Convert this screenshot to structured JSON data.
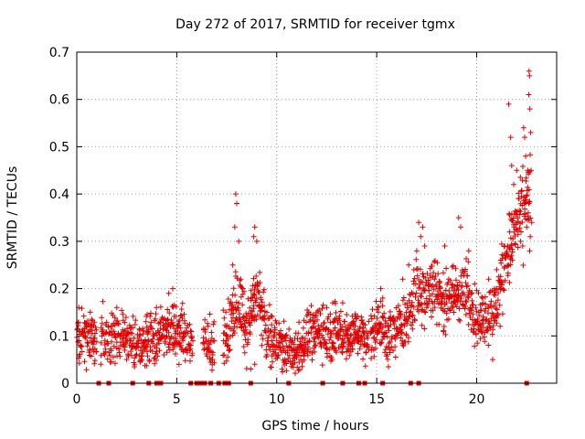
{
  "chart_data": {
    "type": "scatter",
    "title": "Day 272 of 2017, SRMTID for receiver tgmx",
    "xlabel": "GPS time / hours",
    "ylabel": "SRMTID / TECUs",
    "xlim": [
      0,
      24
    ],
    "ylim": [
      0,
      0.7
    ],
    "xticks": [
      0,
      5,
      10,
      15,
      20
    ],
    "xtick_labels": [
      "0",
      "5",
      "10",
      "15",
      "20"
    ],
    "yticks": [
      0,
      0.1,
      0.2,
      0.3,
      0.4,
      0.5,
      0.6,
      0.7
    ],
    "ytick_labels": [
      "0",
      "0.1",
      "0.2",
      "0.3",
      "0.4",
      "0.5",
      "0.6",
      "0.7"
    ],
    "grid": true,
    "marker": "+",
    "color": "#e00000",
    "trend": [
      [
        0.0,
        0.1
      ],
      [
        0.5,
        0.1
      ],
      [
        1.0,
        0.095
      ],
      [
        1.5,
        0.1
      ],
      [
        2.0,
        0.1
      ],
      [
        2.5,
        0.095
      ],
      [
        3.0,
        0.085
      ],
      [
        3.5,
        0.1
      ],
      [
        4.0,
        0.09
      ],
      [
        4.5,
        0.12
      ],
      [
        5.0,
        0.11
      ],
      [
        5.5,
        0.1
      ],
      [
        6.0,
        0.08
      ],
      [
        6.5,
        0.075
      ],
      [
        7.0,
        0.08
      ],
      [
        7.5,
        0.1
      ],
      [
        8.0,
        0.18
      ],
      [
        8.5,
        0.11
      ],
      [
        9.0,
        0.2
      ],
      [
        9.5,
        0.1
      ],
      [
        10.0,
        0.09
      ],
      [
        10.5,
        0.07
      ],
      [
        11.0,
        0.065
      ],
      [
        11.5,
        0.1
      ],
      [
        12.0,
        0.11
      ],
      [
        12.5,
        0.1
      ],
      [
        13.0,
        0.11
      ],
      [
        13.5,
        0.1
      ],
      [
        14.0,
        0.11
      ],
      [
        14.5,
        0.09
      ],
      [
        15.0,
        0.13
      ],
      [
        15.5,
        0.1
      ],
      [
        16.0,
        0.11
      ],
      [
        16.5,
        0.13
      ],
      [
        17.0,
        0.19
      ],
      [
        17.5,
        0.2
      ],
      [
        18.0,
        0.2
      ],
      [
        18.5,
        0.17
      ],
      [
        19.0,
        0.19
      ],
      [
        19.5,
        0.19
      ],
      [
        20.0,
        0.14
      ],
      [
        20.5,
        0.14
      ],
      [
        21.0,
        0.16
      ],
      [
        21.5,
        0.27
      ],
      [
        22.0,
        0.33
      ],
      [
        22.5,
        0.38
      ],
      [
        22.7,
        0.4
      ]
    ],
    "spread": 0.035,
    "gaps": [
      [
        1.0,
        1.2
      ],
      [
        5.8,
        6.3
      ],
      [
        6.9,
        7.3
      ],
      [
        14.6,
        14.7
      ],
      [
        22.8,
        24
      ]
    ],
    "outliers": [
      [
        7.95,
        0.4
      ],
      [
        8.0,
        0.38
      ],
      [
        7.9,
        0.33
      ],
      [
        8.1,
        0.3
      ],
      [
        8.9,
        0.33
      ],
      [
        8.85,
        0.31
      ],
      [
        9.0,
        0.3
      ],
      [
        17.1,
        0.34
      ],
      [
        17.3,
        0.33
      ],
      [
        17.2,
        0.31
      ],
      [
        19.1,
        0.35
      ],
      [
        19.2,
        0.33
      ],
      [
        18.4,
        0.29
      ],
      [
        19.6,
        0.28
      ],
      [
        21.6,
        0.59
      ],
      [
        21.7,
        0.52
      ],
      [
        21.75,
        0.46
      ],
      [
        21.85,
        0.42
      ],
      [
        22.0,
        0.45
      ],
      [
        22.1,
        0.39
      ],
      [
        22.35,
        0.54
      ],
      [
        22.4,
        0.52
      ],
      [
        22.45,
        0.48
      ],
      [
        22.55,
        0.45
      ],
      [
        22.6,
        0.38
      ],
      [
        22.58,
        0.36
      ],
      [
        22.62,
        0.66
      ],
      [
        22.64,
        0.65
      ],
      [
        22.6,
        0.61
      ],
      [
        22.66,
        0.58
      ],
      [
        22.7,
        0.53
      ],
      [
        22.72,
        0.45
      ],
      [
        22.2,
        0.3
      ],
      [
        22.3,
        0.29
      ],
      [
        22.5,
        0.33
      ],
      [
        22.68,
        0.31
      ],
      [
        22.75,
        0.34
      ],
      [
        22.65,
        0.28
      ],
      [
        15.2,
        0.2
      ],
      [
        15.3,
        0.18
      ],
      [
        16.3,
        0.22
      ],
      [
        16.6,
        0.25
      ],
      [
        17.0,
        0.28
      ],
      [
        17.4,
        0.29
      ],
      [
        18.6,
        0.22
      ],
      [
        19.9,
        0.21
      ],
      [
        20.6,
        0.22
      ],
      [
        21.0,
        0.24
      ],
      [
        21.2,
        0.26
      ],
      [
        21.4,
        0.29
      ],
      [
        4.8,
        0.2
      ],
      [
        4.6,
        0.19
      ],
      [
        8.2,
        0.22
      ],
      [
        7.8,
        0.25
      ],
      [
        8.3,
        0.2
      ],
      [
        8.7,
        0.03
      ],
      [
        8.9,
        0.04
      ],
      [
        10.8,
        0.04
      ],
      [
        11.2,
        0.05
      ],
      [
        3.2,
        0.05
      ],
      [
        6.8,
        0.06
      ],
      [
        1.2,
        0.04
      ],
      [
        20.8,
        0.05
      ],
      [
        12.5,
        0.16
      ],
      [
        12.8,
        0.17
      ],
      [
        13.3,
        0.17
      ],
      [
        11.6,
        0.15
      ],
      [
        2.0,
        0.16
      ],
      [
        0.1,
        0.16
      ]
    ],
    "marks_at_zero": [
      1.1,
      1.6,
      2.8,
      3.6,
      4.0,
      4.2,
      5.7,
      6.0,
      6.2,
      6.4,
      6.7,
      7.1,
      7.4,
      7.6,
      8.7,
      10.6,
      12.3,
      13.3,
      14.1,
      14.4,
      15.3,
      16.7,
      17.1,
      22.5
    ]
  }
}
